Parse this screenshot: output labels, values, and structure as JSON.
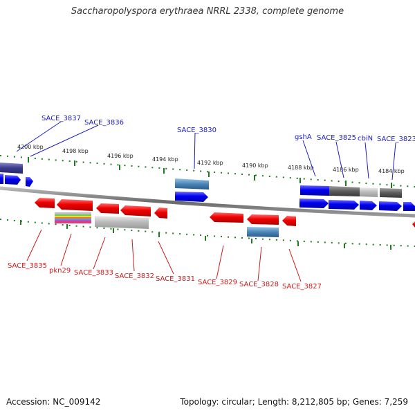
{
  "title": "Saccharopolyspora erythraea NRRL 2338, complete genome",
  "footer": {
    "accession": "Accession: NC_009142",
    "summary": "Topology: circular; Length: 8,212,805 bp; Genes: 7,259"
  },
  "ticks": [
    "4200 kbp",
    "4198 kbp",
    "4196 kbp",
    "4194 kbp",
    "4192 kbp",
    "4190 kbp",
    "4188 kbp",
    "4186 kbp",
    "4184 kbp"
  ],
  "labels_top": [
    "SACE_3837",
    "SACE_3836",
    "SACE_3830",
    "gshA",
    "SACE_3825",
    "cbiN",
    "SACE_3823"
  ],
  "labels_bottom": [
    "SACE_3835",
    "pkn29",
    "SACE_3833",
    "SACE_3832",
    "SACE_3831",
    "SACE_3829",
    "SACE_3828",
    "SACE_3827"
  ],
  "colors": {
    "forward": "#1010e8",
    "reverse": "#e81010",
    "label_forward": "#1a1acc",
    "label_reverse": "#cc1a1a",
    "tick": "#1f7a1f",
    "backbone": "#808080"
  }
}
